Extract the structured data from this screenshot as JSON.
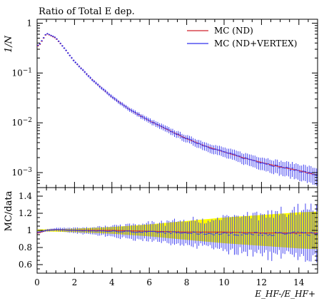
{
  "chart_data": [
    {
      "type": "line",
      "title": "Ratio of Total E dep.",
      "ylabel": "1/N",
      "xlabel": "",
      "xlim": [
        0,
        15
      ],
      "ylim": [
        0.0005,
        1.2
      ],
      "yscale": "log",
      "x_ticks": [
        0,
        2,
        4,
        6,
        8,
        10,
        12,
        14
      ],
      "y_ticks": [
        {
          "value": 1,
          "label": "1"
        },
        {
          "value": 0.1,
          "label": "10^-1"
        },
        {
          "value": 0.01,
          "label": "10^-2"
        },
        {
          "value": 0.001,
          "label": "10^-3"
        }
      ],
      "legend": {
        "placement": "top-right"
      },
      "series": [
        {
          "name": "MC (ND)",
          "color": "#d0202a",
          "x": [
            0.1,
            0.5,
            1,
            1.5,
            2,
            3,
            4,
            5,
            6,
            7,
            8,
            9,
            10,
            11,
            12,
            13,
            14,
            14.9
          ],
          "y": [
            0.35,
            0.62,
            0.5,
            0.3,
            0.17,
            0.07,
            0.033,
            0.018,
            0.011,
            0.0072,
            0.0048,
            0.0034,
            0.0026,
            0.002,
            0.0016,
            0.0013,
            0.0011,
            0.0009
          ]
        },
        {
          "name": "MC (ND+VERTEX)",
          "color": "#3030ee",
          "x": [
            0.1,
            0.5,
            1,
            1.5,
            2,
            3,
            4,
            5,
            6,
            7,
            8,
            9,
            10,
            11,
            12,
            13,
            14,
            14.9
          ],
          "y": [
            0.36,
            0.63,
            0.51,
            0.3,
            0.17,
            0.07,
            0.033,
            0.018,
            0.011,
            0.0072,
            0.0048,
            0.0034,
            0.0026,
            0.002,
            0.0016,
            0.0013,
            0.0011,
            0.0009
          ]
        }
      ]
    },
    {
      "type": "line",
      "ylabel": "MC/data",
      "xlabel": "E_HF-/E_HF+",
      "xlim": [
        0,
        15
      ],
      "ylim": [
        0.5,
        1.5
      ],
      "x_ticks": [
        0,
        2,
        4,
        6,
        8,
        10,
        12,
        14
      ],
      "y_ticks": [
        {
          "value": 0.6,
          "label": "0.6"
        },
        {
          "value": 0.8,
          "label": "0.8"
        },
        {
          "value": 1.0,
          "label": "1"
        },
        {
          "value": 1.2,
          "label": "1.2"
        },
        {
          "value": 1.4,
          "label": "1.4"
        }
      ],
      "band": {
        "color": "#ffff00",
        "x": [
          0,
          2,
          4,
          6,
          8,
          10,
          12,
          14,
          15
        ],
        "lo": [
          0.99,
          0.98,
          0.96,
          0.93,
          0.89,
          0.85,
          0.82,
          0.79,
          0.78
        ],
        "hi": [
          1.01,
          1.02,
          1.04,
          1.07,
          1.11,
          1.15,
          1.18,
          1.21,
          1.22
        ]
      },
      "series": [
        {
          "name": "MC (ND)",
          "color": "#d0202a",
          "x": [
            0.1,
            0.5,
            1,
            2,
            4,
            6,
            8,
            10,
            12,
            14,
            14.9
          ],
          "y": [
            0.97,
            1.0,
            1.01,
            1.0,
            1.0,
            0.99,
            0.98,
            0.98,
            0.97,
            0.97,
            0.97
          ]
        },
        {
          "name": "MC (ND+VERTEX)",
          "color": "#3030ee",
          "x": [
            0.1,
            0.5,
            1,
            2,
            4,
            6,
            8,
            10,
            12,
            14,
            14.9
          ],
          "y": [
            0.98,
            1.0,
            1.01,
            1.0,
            0.99,
            0.98,
            0.97,
            0.96,
            0.96,
            0.96,
            0.96
          ],
          "error_range": [
            0.01,
            0.3
          ]
        }
      ]
    }
  ]
}
